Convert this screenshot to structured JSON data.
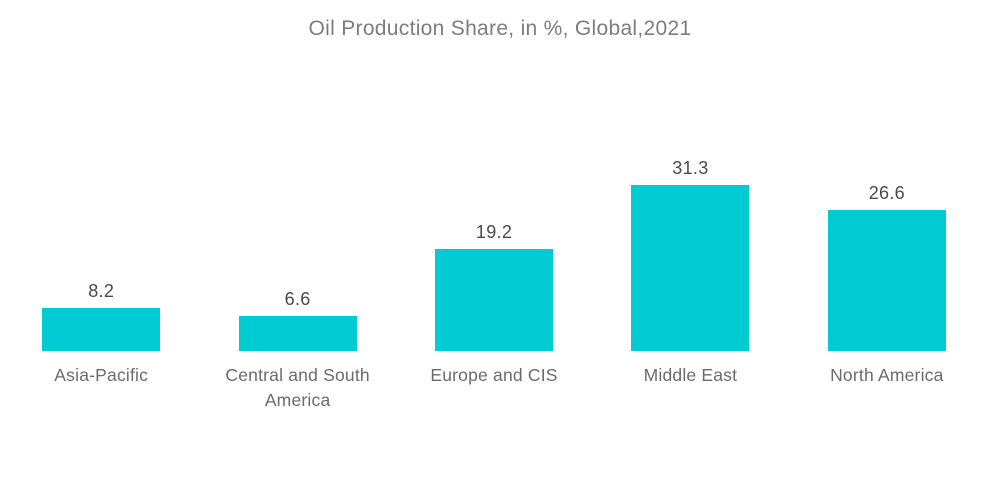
{
  "title": "Oil Production Share, in %, Global,2021",
  "chart_data": {
    "type": "bar",
    "title": "Oil Production Share, in %, Global,2021",
    "categories": [
      "Asia-Pacific",
      "Central and South America",
      "Europe and CIS",
      "Middle East",
      "North America"
    ],
    "values": [
      8.2,
      6.6,
      19.2,
      31.3,
      26.6
    ],
    "value_labels": [
      "8.2",
      "6.6",
      "19.2",
      "31.3",
      "26.6"
    ],
    "xlabel": "",
    "ylabel": "",
    "ylim": [
      0,
      35
    ],
    "grid": false,
    "axes_visible": false,
    "legend": "none",
    "value_labels_position": "above-bar"
  },
  "colors": {
    "bar": "#00CBD2",
    "title_text": "#7d7d7d",
    "value_text": "#4a4a4a",
    "category_text": "#6b6b6b",
    "background": "#ffffff"
  }
}
